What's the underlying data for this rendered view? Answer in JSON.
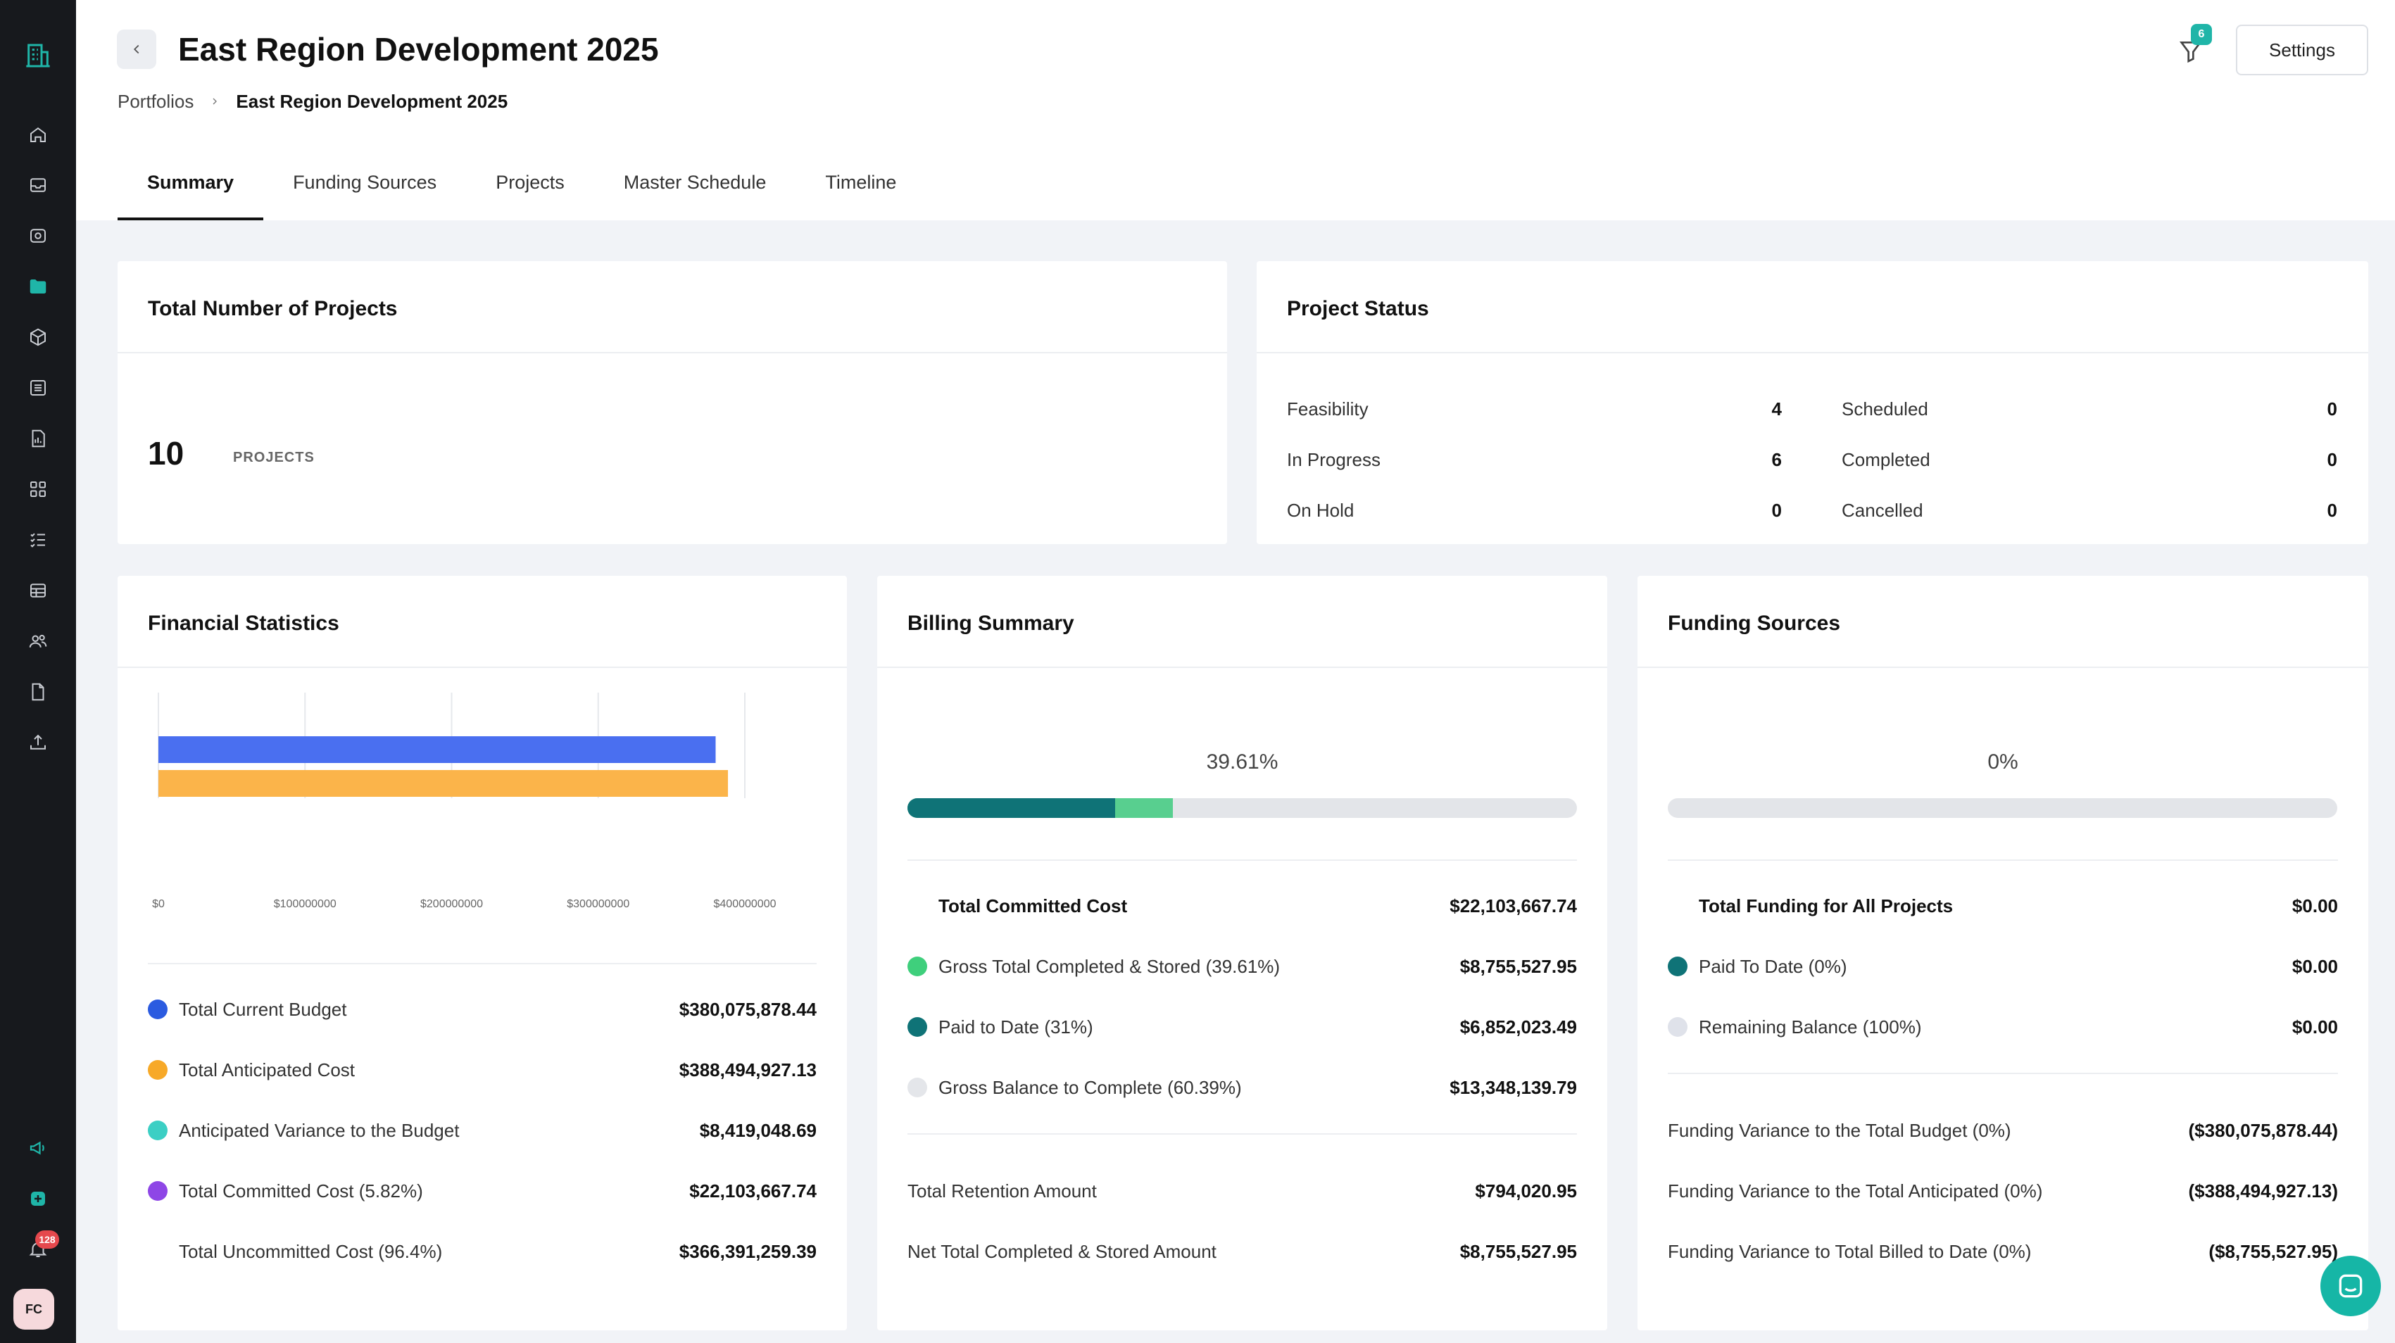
{
  "header": {
    "title": "East Region Development 2025",
    "breadcrumb": {
      "root": "Portfolios",
      "current": "East Region Development 2025"
    },
    "filter_count": "6",
    "settings_label": "Settings"
  },
  "tabs": [
    {
      "label": "Summary"
    },
    {
      "label": "Funding Sources"
    },
    {
      "label": "Projects"
    },
    {
      "label": "Master Schedule"
    },
    {
      "label": "Timeline"
    }
  ],
  "sidebar": {
    "notification_count": "128",
    "avatar_initials": "FC",
    "accent": "#1fb5a8"
  },
  "total_projects": {
    "title": "Total Number of Projects",
    "count": "10",
    "unit": "PROJECTS"
  },
  "project_status": {
    "title": "Project Status",
    "left": [
      {
        "label": "Feasibility",
        "value": "4"
      },
      {
        "label": "In Progress",
        "value": "6"
      },
      {
        "label": "On Hold",
        "value": "0"
      }
    ],
    "right": [
      {
        "label": "Scheduled",
        "value": "0"
      },
      {
        "label": "Completed",
        "value": "0"
      },
      {
        "label": "Cancelled",
        "value": "0"
      }
    ]
  },
  "financial": {
    "title": "Financial Statistics",
    "rows": [
      {
        "label": "Total Current Budget",
        "value": "$380,075,878.44",
        "color": "#2b5be0"
      },
      {
        "label": "Total Anticipated Cost",
        "value": "$388,494,927.13",
        "color": "#f7a928"
      },
      {
        "label": "Anticipated Variance to the Budget",
        "value": "$8,419,048.69",
        "color": "#3ccfc4"
      },
      {
        "label": "Total Committed Cost (5.82%)",
        "value": "$22,103,667.74",
        "color": "#8e46e6"
      },
      {
        "label": "Total Uncommitted Cost (96.4%)",
        "value": "$366,391,259.39",
        "color": ""
      }
    ]
  },
  "chart_data": {
    "type": "bar",
    "orientation": "horizontal",
    "x_ticks": [
      "$0",
      "$100000000",
      "$200000000",
      "$300000000",
      "$400000000"
    ],
    "xlim": [
      0,
      400000000
    ],
    "values": [
      380075878.44,
      388494927.13,
      8419048.69,
      22103667.74
    ],
    "colors": [
      "#4a6ff0",
      "#fbb44a",
      "#5fd8cf",
      "#a45cf0"
    ],
    "grid": true
  },
  "billing": {
    "title": "Billing Summary",
    "percent_label": "39.61%",
    "progress": {
      "paid_fraction": 0.31,
      "completed_fraction": 0.3961
    },
    "colors": {
      "paid": "#0f7377",
      "completed": "#58cf8f"
    },
    "total_label": "Total Committed Cost",
    "total_value": "$22,103,667.74",
    "rows": [
      {
        "label": "Gross Total Completed & Stored (39.61%)",
        "value": "$8,755,527.95",
        "color": "#3fcf7c"
      },
      {
        "label": "Paid to Date (31%)",
        "value": "$6,852,023.49",
        "color": "#0f7377"
      },
      {
        "label": "Gross Balance to Complete (60.39%)",
        "value": "$13,348,139.79",
        "color": "#e4e6ea"
      }
    ],
    "footer": [
      {
        "label": "Total Retention Amount",
        "value": "$794,020.95"
      },
      {
        "label": "Net Total Completed & Stored Amount",
        "value": "$8,755,527.95"
      }
    ]
  },
  "funding": {
    "title": "Funding Sources",
    "percent_label": "0%",
    "progress": {
      "fraction": 0
    },
    "total_label": "Total Funding for All Projects",
    "total_value": "$0.00",
    "rows": [
      {
        "label": "Paid To Date (0%)",
        "value": "$0.00",
        "color": "#0f7377"
      },
      {
        "label": "Remaining Balance (100%)",
        "value": "$0.00",
        "color": "#dfe2ea"
      }
    ],
    "footer": [
      {
        "label": "Funding Variance to the Total Budget (0%)",
        "value": "($380,075,878.44)"
      },
      {
        "label": "Funding Variance to the Total Anticipated (0%)",
        "value": "($388,494,927.13)"
      },
      {
        "label": "Funding Variance to Total Billed to Date (0%)",
        "value": "($8,755,527.95)"
      }
    ]
  }
}
